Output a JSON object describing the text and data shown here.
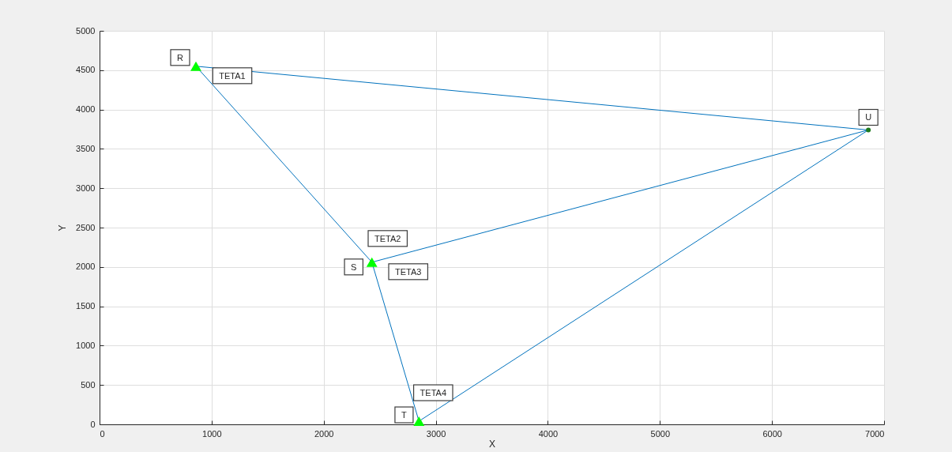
{
  "chart_data": {
    "type": "line",
    "xlabel": "X",
    "ylabel": "Y",
    "xlim": [
      0,
      7000
    ],
    "xticks": [
      0,
      1000,
      2000,
      3000,
      4000,
      5000,
      6000,
      7000
    ],
    "ylim": [
      0,
      5000
    ],
    "yticks": [
      0,
      500,
      1000,
      1500,
      2000,
      2500,
      3000,
      3500,
      4000,
      4500,
      5000
    ],
    "grid": true,
    "series": [
      {
        "color": "#0072bd",
        "x": [
          2430,
          860,
          6860,
          2430,
          2850,
          6860
        ],
        "values": [
          2060,
          4550,
          3740,
          2060,
          40,
          3740
        ]
      },
      {
        "type": "scatter",
        "marker": "triangle",
        "color": "#00ff00",
        "x": [
          860,
          2430,
          2850
        ],
        "values": [
          4550,
          2060,
          40
        ]
      },
      {
        "type": "scatter",
        "marker": "circle",
        "color": "#1e7b1e",
        "x": [
          6860
        ],
        "values": [
          3740
        ]
      }
    ],
    "annotations": [
      {
        "text": "R",
        "x": 860,
        "y": 4550
      },
      {
        "text": "TETA1",
        "x": 860,
        "y": 4550
      },
      {
        "text": "U",
        "x": 6860,
        "y": 3740
      },
      {
        "text": "TETA2",
        "x": 2430,
        "y": 2060
      },
      {
        "text": "S",
        "x": 2430,
        "y": 2060
      },
      {
        "text": "TETA3",
        "x": 2430,
        "y": 2060
      },
      {
        "text": "TETA4",
        "x": 2850,
        "y": 40
      },
      {
        "text": "T",
        "x": 2850,
        "y": 40
      }
    ]
  }
}
